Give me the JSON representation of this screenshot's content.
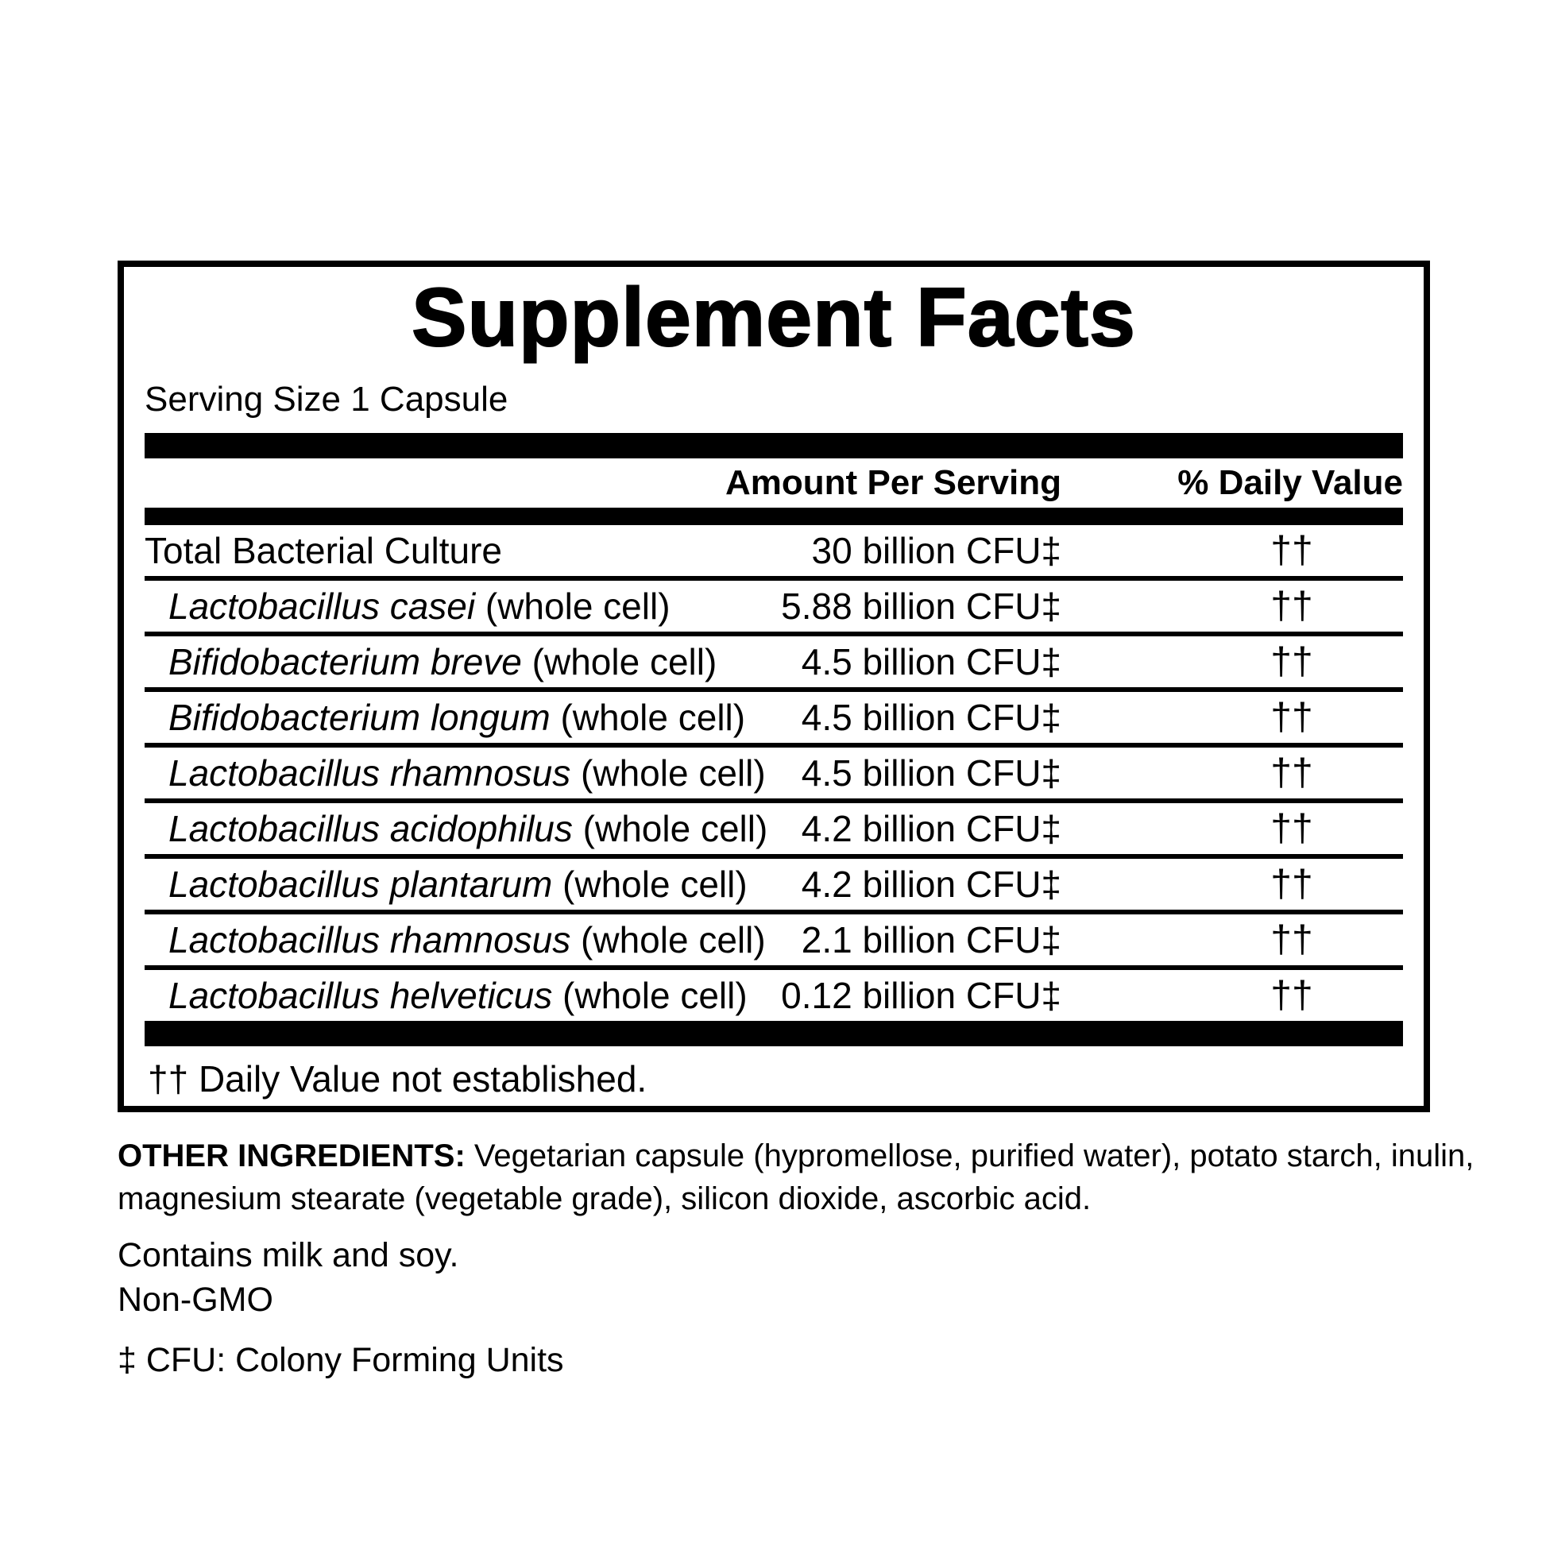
{
  "label": {
    "title": "Supplement Facts",
    "serving_size": "Serving Size 1 Capsule",
    "columns": {
      "amount": "Amount Per Serving",
      "daily_value": "% Daily Value"
    },
    "rows": [
      {
        "italic": "",
        "text": "Total Bacterial Culture",
        "amount": "30 billion CFU‡",
        "dv": "††",
        "indent": false
      },
      {
        "italic": "Lactobacillus casei",
        "text": " (whole cell)",
        "amount": "5.88 billion CFU‡",
        "dv": "††",
        "indent": true
      },
      {
        "italic": "Bifidobacterium breve",
        "text": " (whole cell)",
        "amount": "4.5 billion CFU‡",
        "dv": "††",
        "indent": true
      },
      {
        "italic": "Bifidobacterium longum",
        "text": " (whole cell)",
        "amount": "4.5 billion CFU‡",
        "dv": "††",
        "indent": true
      },
      {
        "italic": "Lactobacillus rhamnosus",
        "text": " (whole cell)",
        "amount": "4.5 billion CFU‡",
        "dv": "††",
        "indent": true
      },
      {
        "italic": "Lactobacillus acidophilus",
        "text": " (whole cell)",
        "amount": "4.2 billion CFU‡",
        "dv": "††",
        "indent": true
      },
      {
        "italic": "Lactobacillus plantarum",
        "text": " (whole cell)",
        "amount": "4.2 billion CFU‡",
        "dv": "††",
        "indent": true
      },
      {
        "italic": "Lactobacillus rhamnosus",
        "text": " (whole cell)",
        "amount": "2.1 billion CFU‡",
        "dv": "††",
        "indent": true
      },
      {
        "italic": "Lactobacillus helveticus",
        "text": " (whole cell)",
        "amount": "0.12 billion CFU‡",
        "dv": "††",
        "indent": true
      }
    ],
    "footnote": "†† Daily Value not established."
  },
  "notes": {
    "other_ingredients_label": "OTHER INGREDIENTS:",
    "other_ingredients_text": " Vegetarian capsule (hypromellose, purified water), potato starch, inulin, magnesium stearate (vegetable grade), silicon dioxide, ascorbic acid.",
    "contains": "Contains milk and soy.",
    "non_gmo": "Non-GMO",
    "cfu_note": "‡ CFU: Colony Forming Units"
  },
  "colors": {
    "ink": "#000000",
    "background": "#ffffff"
  }
}
